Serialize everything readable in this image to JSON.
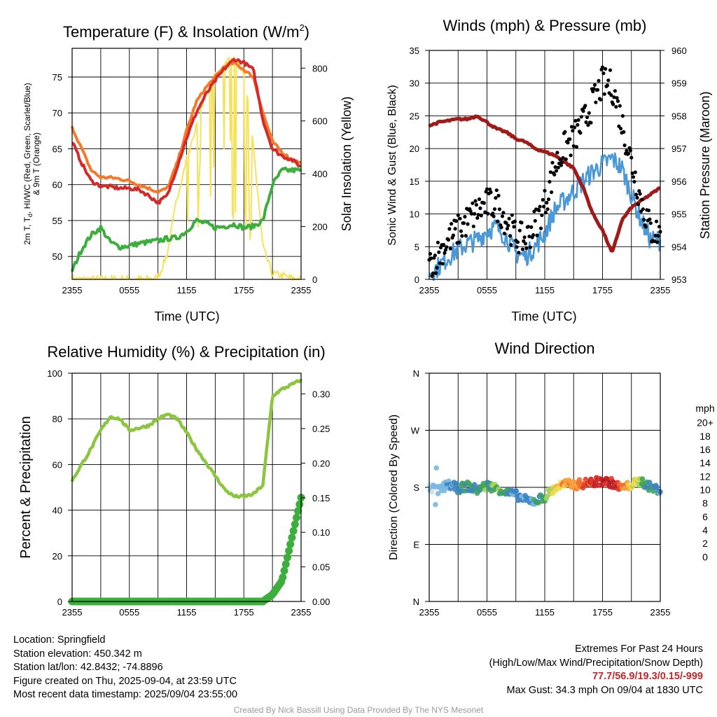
{
  "colors": {
    "temperature": "#d42a2a",
    "heat_index": "#d42a2a",
    "temp_9m": "#f47a2a",
    "dewpoint": "#3cae3c",
    "insolation": "#f6e25a",
    "sonic_wind": "#4a98d6",
    "gust": "#000000",
    "pressure": "#a11a1a",
    "humidity": "#8cc63f",
    "precip": "#3cae3c",
    "extremes": "#c0272d",
    "credit": "#9a9a9a"
  },
  "chart_data": [
    {
      "id": "temp",
      "type": "line",
      "title": "Temperature (F) & Insolation (W/m",
      "title_sup": "2",
      "title_end": ")",
      "xlabel": "Time (UTC)",
      "ylabel": "2m T, T, HI/WC (Red, Green, Scarlet/Blue) & 9m T (Orange)",
      "ylabel_line1": "2m T, T",
      "ylabel_sub": "d",
      "ylabel_line1_end": ", HI/WC (Red, Green, Scarlet/Blue)",
      "ylabel_line2": "& 9m T (Orange)",
      "ylabel_right": "Solar Insolation (Yellow)",
      "x_ticks": [
        "2355",
        "0555",
        "1155",
        "1755",
        "2355"
      ],
      "y_ticks": [
        50,
        55,
        60,
        65,
        70,
        75
      ],
      "y_ticks_right": [
        0,
        200,
        400,
        600,
        800
      ],
      "ylim": [
        46.8,
        79
      ],
      "ylim_right": [
        0,
        875
      ],
      "x": [
        0,
        1,
        2,
        3,
        4,
        5,
        6,
        7,
        8,
        9,
        10,
        11,
        12,
        13,
        14,
        15,
        16,
        17,
        18,
        19,
        20,
        21,
        22,
        23,
        24
      ],
      "series": [
        {
          "name": "Temperature",
          "values": [
            66,
            63,
            60.5,
            59.8,
            59.7,
            59.5,
            59.5,
            59.3,
            58.5,
            57.5,
            58.5,
            62.5,
            66.5,
            70,
            72.5,
            74.5,
            76.2,
            77.5,
            77,
            76,
            69,
            65,
            64,
            63.5,
            62.5
          ]
        },
        {
          "name": "9m T",
          "values": [
            68,
            65,
            62,
            61,
            61,
            60.8,
            60.5,
            60,
            59.5,
            59,
            59.5,
            63,
            67.5,
            71.5,
            73.5,
            75,
            76.5,
            77,
            76,
            75,
            70,
            66,
            64.5,
            63.5,
            63
          ]
        },
        {
          "name": "Dewpoint",
          "values": [
            48,
            51,
            53,
            54,
            52,
            51.3,
            51.5,
            51.8,
            52,
            52.2,
            52.5,
            52.6,
            53.5,
            55,
            54.6,
            54,
            54.2,
            54.5,
            54,
            54.2,
            55,
            60,
            62,
            62,
            62
          ]
        },
        {
          "name": "Solar Insolation",
          "axis": "right",
          "values": [
            0,
            0,
            0,
            0,
            0,
            0,
            0,
            0,
            0,
            5,
            100,
            310,
            460,
            580,
            700,
            770,
            820,
            830,
            790,
            500,
            120,
            20,
            15,
            3,
            0
          ]
        }
      ]
    },
    {
      "id": "wind",
      "type": "line",
      "title": "Winds (mph) & Pressure (mb)",
      "xlabel": "Time (UTC)",
      "ylabel": "Sonic Wind & Gust (Blue, Black)",
      "ylabel_right": "Station Pressure (Maroon)",
      "x_ticks": [
        "2355",
        "0555",
        "1155",
        "1755",
        "2355"
      ],
      "y_ticks": [
        0,
        5,
        10,
        15,
        20,
        25,
        30,
        35
      ],
      "y_ticks_right": [
        953,
        954,
        955,
        956,
        957,
        958,
        959,
        960
      ],
      "ylim": [
        0,
        35
      ],
      "ylim_right": [
        953,
        960
      ],
      "x": [
        0,
        1,
        2,
        3,
        4,
        5,
        6,
        7,
        8,
        9,
        10,
        11,
        12,
        13,
        14,
        15,
        16,
        17,
        18,
        19,
        20,
        21,
        22,
        23,
        24
      ],
      "series": [
        {
          "name": "Sonic Wind",
          "values": [
            1,
            2,
            3.5,
            4.5,
            5.5,
            6,
            7.5,
            8,
            6.5,
            4,
            3.5,
            5,
            7,
            10.5,
            12,
            13.5,
            15,
            16.5,
            17.5,
            18.5,
            17,
            13,
            9,
            6,
            6
          ]
        },
        {
          "name": "Gust",
          "values": [
            2,
            4,
            6,
            7.5,
            9,
            10.5,
            11.5,
            11.5,
            9,
            6.5,
            6,
            8.5,
            11.5,
            17,
            20,
            21.5,
            24,
            27,
            30,
            29.5,
            24,
            18,
            12,
            7.5,
            7
          ]
        },
        {
          "name": "Station Pressure",
          "axis": "right",
          "values": [
            957.7,
            957.8,
            957.85,
            957.9,
            957.9,
            958.0,
            957.8,
            957.6,
            957.5,
            957.3,
            957.2,
            957.0,
            956.9,
            956.8,
            956.6,
            956.4,
            955.8,
            955.0,
            954.5,
            953.8,
            954.8,
            955.2,
            955.4,
            955.6,
            955.8
          ]
        }
      ]
    },
    {
      "id": "rh",
      "type": "line",
      "title": "Relative Humidity (%) & Precipitation (in)",
      "ylabel": "Percent & Precipitation",
      "x_ticks": [
        "2355",
        "0555",
        "1155",
        "1755",
        "2355"
      ],
      "y_ticks": [
        0,
        20,
        40,
        60,
        80,
        100
      ],
      "y_ticks_right": [
        "0.00",
        "0.05",
        "0.10",
        "0.15",
        "0.20",
        "0.25",
        "0.30"
      ],
      "ylim": [
        0,
        100
      ],
      "ylim_right": [
        0,
        0.33
      ],
      "x": [
        0,
        1,
        2,
        3,
        4,
        5,
        6,
        7,
        8,
        9,
        10,
        11,
        12,
        13,
        14,
        15,
        16,
        17,
        18,
        19,
        20,
        21,
        22,
        23,
        24
      ],
      "series": [
        {
          "name": "Relative Humidity",
          "values": [
            53,
            60,
            67,
            75,
            81,
            80,
            75,
            76,
            77,
            80,
            82,
            80,
            74,
            67,
            61,
            55,
            49,
            46,
            46,
            47,
            51,
            90,
            93,
            95,
            97
          ]
        },
        {
          "name": "Precipitation",
          "axis": "right",
          "values": [
            0,
            0,
            0,
            0,
            0,
            0,
            0,
            0,
            0,
            0,
            0,
            0,
            0,
            0,
            0,
            0,
            0,
            0,
            0,
            0,
            0,
            0.01,
            0.03,
            0.09,
            0.15
          ]
        }
      ]
    },
    {
      "id": "wdir",
      "type": "scatter",
      "title": "Wind Direction",
      "ylabel": "Direction (Colored By Speed)",
      "x_ticks": [
        "2355",
        "0555",
        "1155",
        "1755",
        "2355"
      ],
      "y_ticks": [
        "N",
        "E",
        "S",
        "W",
        "N"
      ],
      "ylim": [
        0,
        360
      ],
      "x": [
        0,
        1,
        2,
        3,
        4,
        5,
        6,
        7,
        8,
        9,
        10,
        11,
        12,
        13,
        14,
        15,
        16,
        17,
        18,
        19,
        20,
        21,
        22,
        23,
        24
      ],
      "series": [
        {
          "name": "Wind Direction",
          "values": [
            180,
            175,
            185,
            178,
            182,
            176,
            183,
            179,
            172,
            168,
            160,
            158,
            165,
            178,
            185,
            184,
            186,
            188,
            190,
            187,
            178,
            184,
            190,
            180,
            176
          ]
        },
        {
          "name": "Wind Speed",
          "values": [
            1,
            2,
            3,
            4,
            5,
            5,
            6,
            7,
            5,
            3,
            3,
            4,
            6,
            10,
            12,
            13,
            15,
            17,
            18,
            18,
            14,
            10,
            7,
            5,
            4
          ]
        }
      ],
      "colorbar": {
        "unit": "mph",
        "labels": [
          "20+",
          "18",
          "16",
          "14",
          "12",
          "10",
          "8",
          "6",
          "4",
          "2",
          "0"
        ],
        "colors": [
          "#9b1a1f",
          "#c22026",
          "#e03a2a",
          "#f26b2f",
          "#f8a03b",
          "#f5d94b",
          "#a9d159",
          "#3fa45c",
          "#3d84c3",
          "#79b8e2",
          "#c6e6f6"
        ]
      }
    }
  ],
  "footer": {
    "location": "Location: Springfield",
    "elevation": "Station elevation: 450.342 m",
    "latlon": "Station lat/lon: 42.8432; -74.8896",
    "created": "Figure created on Thu, 2025-09-04, at 23:59 UTC",
    "recent": "Most recent data timestamp: 2025/09/04 23:55:00",
    "extremes_title": "Extremes For Past 24 Hours",
    "extremes_legend": "(High/Low/Max Wind/Precipitation/Snow Depth)",
    "extremes_values": "77.7/56.9/19.3/0.15/-999",
    "max_gust": "Max Gust: 34.3 mph On 09/04 at 1830 UTC",
    "credit": "Created By Nick Bassill Using Data Provided By The NYS Mesonet"
  }
}
